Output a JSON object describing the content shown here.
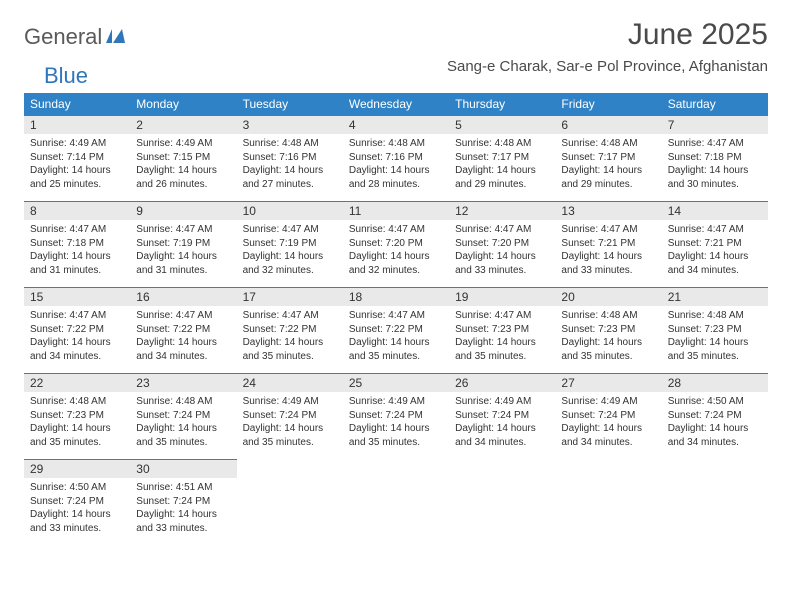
{
  "brand": {
    "general": "General",
    "blue": "Blue"
  },
  "title": "June 2025",
  "location": "Sang-e Charak, Sar-e Pol Province, Afghanistan",
  "colors": {
    "header_bg": "#2f82c5",
    "header_fg": "#ffffff",
    "daynum_bg": "#e9e9e9",
    "border": "#2f82c5",
    "text": "#333333",
    "logo_gray": "#5a5a5a",
    "logo_blue": "#2f76bb"
  },
  "weekdays": [
    "Sunday",
    "Monday",
    "Tuesday",
    "Wednesday",
    "Thursday",
    "Friday",
    "Saturday"
  ],
  "days": [
    {
      "n": "1",
      "sr": "4:49 AM",
      "ss": "7:14 PM",
      "dl": "14 hours and 25 minutes."
    },
    {
      "n": "2",
      "sr": "4:49 AM",
      "ss": "7:15 PM",
      "dl": "14 hours and 26 minutes."
    },
    {
      "n": "3",
      "sr": "4:48 AM",
      "ss": "7:16 PM",
      "dl": "14 hours and 27 minutes."
    },
    {
      "n": "4",
      "sr": "4:48 AM",
      "ss": "7:16 PM",
      "dl": "14 hours and 28 minutes."
    },
    {
      "n": "5",
      "sr": "4:48 AM",
      "ss": "7:17 PM",
      "dl": "14 hours and 29 minutes."
    },
    {
      "n": "6",
      "sr": "4:48 AM",
      "ss": "7:17 PM",
      "dl": "14 hours and 29 minutes."
    },
    {
      "n": "7",
      "sr": "4:47 AM",
      "ss": "7:18 PM",
      "dl": "14 hours and 30 minutes."
    },
    {
      "n": "8",
      "sr": "4:47 AM",
      "ss": "7:18 PM",
      "dl": "14 hours and 31 minutes."
    },
    {
      "n": "9",
      "sr": "4:47 AM",
      "ss": "7:19 PM",
      "dl": "14 hours and 31 minutes."
    },
    {
      "n": "10",
      "sr": "4:47 AM",
      "ss": "7:19 PM",
      "dl": "14 hours and 32 minutes."
    },
    {
      "n": "11",
      "sr": "4:47 AM",
      "ss": "7:20 PM",
      "dl": "14 hours and 32 minutes."
    },
    {
      "n": "12",
      "sr": "4:47 AM",
      "ss": "7:20 PM",
      "dl": "14 hours and 33 minutes."
    },
    {
      "n": "13",
      "sr": "4:47 AM",
      "ss": "7:21 PM",
      "dl": "14 hours and 33 minutes."
    },
    {
      "n": "14",
      "sr": "4:47 AM",
      "ss": "7:21 PM",
      "dl": "14 hours and 34 minutes."
    },
    {
      "n": "15",
      "sr": "4:47 AM",
      "ss": "7:22 PM",
      "dl": "14 hours and 34 minutes."
    },
    {
      "n": "16",
      "sr": "4:47 AM",
      "ss": "7:22 PM",
      "dl": "14 hours and 34 minutes."
    },
    {
      "n": "17",
      "sr": "4:47 AM",
      "ss": "7:22 PM",
      "dl": "14 hours and 35 minutes."
    },
    {
      "n": "18",
      "sr": "4:47 AM",
      "ss": "7:22 PM",
      "dl": "14 hours and 35 minutes."
    },
    {
      "n": "19",
      "sr": "4:47 AM",
      "ss": "7:23 PM",
      "dl": "14 hours and 35 minutes."
    },
    {
      "n": "20",
      "sr": "4:48 AM",
      "ss": "7:23 PM",
      "dl": "14 hours and 35 minutes."
    },
    {
      "n": "21",
      "sr": "4:48 AM",
      "ss": "7:23 PM",
      "dl": "14 hours and 35 minutes."
    },
    {
      "n": "22",
      "sr": "4:48 AM",
      "ss": "7:23 PM",
      "dl": "14 hours and 35 minutes."
    },
    {
      "n": "23",
      "sr": "4:48 AM",
      "ss": "7:24 PM",
      "dl": "14 hours and 35 minutes."
    },
    {
      "n": "24",
      "sr": "4:49 AM",
      "ss": "7:24 PM",
      "dl": "14 hours and 35 minutes."
    },
    {
      "n": "25",
      "sr": "4:49 AM",
      "ss": "7:24 PM",
      "dl": "14 hours and 35 minutes."
    },
    {
      "n": "26",
      "sr": "4:49 AM",
      "ss": "7:24 PM",
      "dl": "14 hours and 34 minutes."
    },
    {
      "n": "27",
      "sr": "4:49 AM",
      "ss": "7:24 PM",
      "dl": "14 hours and 34 minutes."
    },
    {
      "n": "28",
      "sr": "4:50 AM",
      "ss": "7:24 PM",
      "dl": "14 hours and 34 minutes."
    },
    {
      "n": "29",
      "sr": "4:50 AM",
      "ss": "7:24 PM",
      "dl": "14 hours and 33 minutes."
    },
    {
      "n": "30",
      "sr": "4:51 AM",
      "ss": "7:24 PM",
      "dl": "14 hours and 33 minutes."
    }
  ],
  "labels": {
    "sunrise": "Sunrise:",
    "sunset": "Sunset:",
    "daylight": "Daylight:"
  }
}
